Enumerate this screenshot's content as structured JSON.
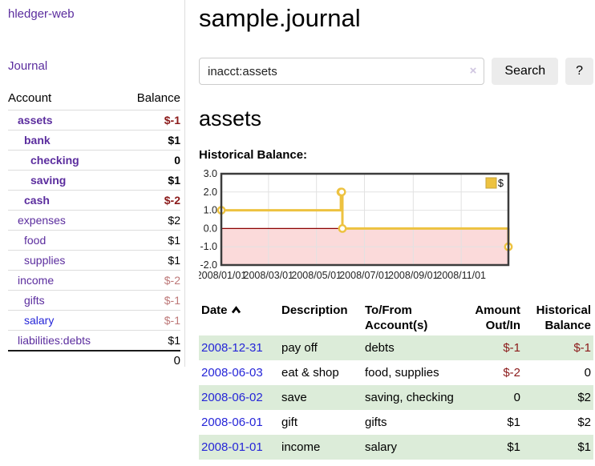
{
  "app": {
    "brand": "hledger-web",
    "nav_journal": "Journal"
  },
  "sidebar": {
    "header": {
      "account": "Account",
      "balance": "Balance"
    },
    "accounts": [
      {
        "name": "assets",
        "depth": 1,
        "bold": true,
        "link": "purple",
        "balance": "$-1",
        "balance_style": "neg"
      },
      {
        "name": "bank",
        "depth": 2,
        "bold": true,
        "link": "purple",
        "balance": "$1",
        "balance_style": ""
      },
      {
        "name": "checking",
        "depth": 3,
        "bold": true,
        "link": "purple",
        "balance": "0",
        "balance_style": ""
      },
      {
        "name": "saving",
        "depth": 3,
        "bold": true,
        "link": "purple",
        "balance": "$1",
        "balance_style": ""
      },
      {
        "name": "cash",
        "depth": 2,
        "bold": true,
        "link": "purple",
        "balance": "$-2",
        "balance_style": "neg"
      },
      {
        "name": "expenses",
        "depth": 1,
        "bold": false,
        "link": "purple",
        "balance": "$2",
        "balance_style": ""
      },
      {
        "name": "food",
        "depth": 2,
        "bold": false,
        "link": "purple",
        "balance": "$1",
        "balance_style": ""
      },
      {
        "name": "supplies",
        "depth": 2,
        "bold": false,
        "link": "purple",
        "balance": "$1",
        "balance_style": ""
      },
      {
        "name": "income",
        "depth": 1,
        "bold": false,
        "link": "purple",
        "balance": "$-2",
        "balance_style": "neg-muted"
      },
      {
        "name": "gifts",
        "depth": 2,
        "bold": false,
        "link": "purple",
        "balance": "$-1",
        "balance_style": "neg-muted"
      },
      {
        "name": "salary",
        "depth": 2,
        "bold": false,
        "link": "blue",
        "balance": "$-1",
        "balance_style": "neg-muted"
      },
      {
        "name": "liabilities:debts",
        "depth": 1,
        "bold": false,
        "link": "purple",
        "balance": "$1",
        "balance_style": ""
      }
    ],
    "total": "0"
  },
  "header": {
    "title": "sample.journal"
  },
  "search": {
    "value": "inacct:assets",
    "clear_icon": "×",
    "button_label": "Search",
    "help_label": "?"
  },
  "account_page": {
    "heading": "assets",
    "chart_label": "Historical Balance:"
  },
  "chart_data": {
    "type": "line",
    "title": "Historical Balance",
    "step": true,
    "series": [
      {
        "name": "$",
        "color": "#edc240",
        "points": [
          [
            "2008-01-01",
            1
          ],
          [
            "2008-06-01",
            2
          ],
          [
            "2008-06-02",
            2
          ],
          [
            "2008-06-03",
            0
          ],
          [
            "2008-12-31",
            -1
          ]
        ]
      }
    ],
    "xlim": [
      "2008-01-01",
      "2008-12-31"
    ],
    "ylim": [
      -2,
      3
    ],
    "y_ticks": [
      3,
      2,
      1,
      0,
      -1,
      -2
    ],
    "x_ticks": [
      "2008-01-01",
      "2008-03-01",
      "2008-05-01",
      "2008-07-01",
      "2008-09-01",
      "2008-11-01"
    ],
    "grid": true,
    "legend_position": "top-right",
    "legend_label": "$",
    "negative_region_fill": "#fbdada",
    "zero_line_color": "#8b0000",
    "border_color": "#3c3c3c",
    "grid_color": "#e2e2e2"
  },
  "register": {
    "columns": [
      {
        "line1": "Date",
        "line2": "",
        "align": "left"
      },
      {
        "line1": "Description",
        "line2": "",
        "align": "left"
      },
      {
        "line1": "To/From",
        "line2": "Account(s)",
        "align": "left"
      },
      {
        "line1": "Amount",
        "line2": "Out/In",
        "align": "right"
      },
      {
        "line1": "Historical",
        "line2": "Balance",
        "align": "right"
      }
    ],
    "rows": [
      {
        "date": "2008-12-31",
        "description": "pay off",
        "accounts": "debts",
        "amount": "$-1",
        "amount_negative": true,
        "balance": "$-1",
        "balance_negative": true
      },
      {
        "date": "2008-06-03",
        "description": "eat & shop",
        "accounts": "food, supplies",
        "amount": "$-2",
        "amount_negative": true,
        "balance": "0",
        "balance_negative": false
      },
      {
        "date": "2008-06-02",
        "description": "save",
        "accounts": "saving, checking",
        "amount": "0",
        "amount_negative": false,
        "balance": "$2",
        "balance_negative": false
      },
      {
        "date": "2008-06-01",
        "description": "gift",
        "accounts": "gifts",
        "amount": "$1",
        "amount_negative": false,
        "balance": "$2",
        "balance_negative": false
      },
      {
        "date": "2008-01-01",
        "description": "income",
        "accounts": "salary",
        "amount": "$1",
        "amount_negative": false,
        "balance": "$1",
        "balance_negative": false
      }
    ]
  }
}
